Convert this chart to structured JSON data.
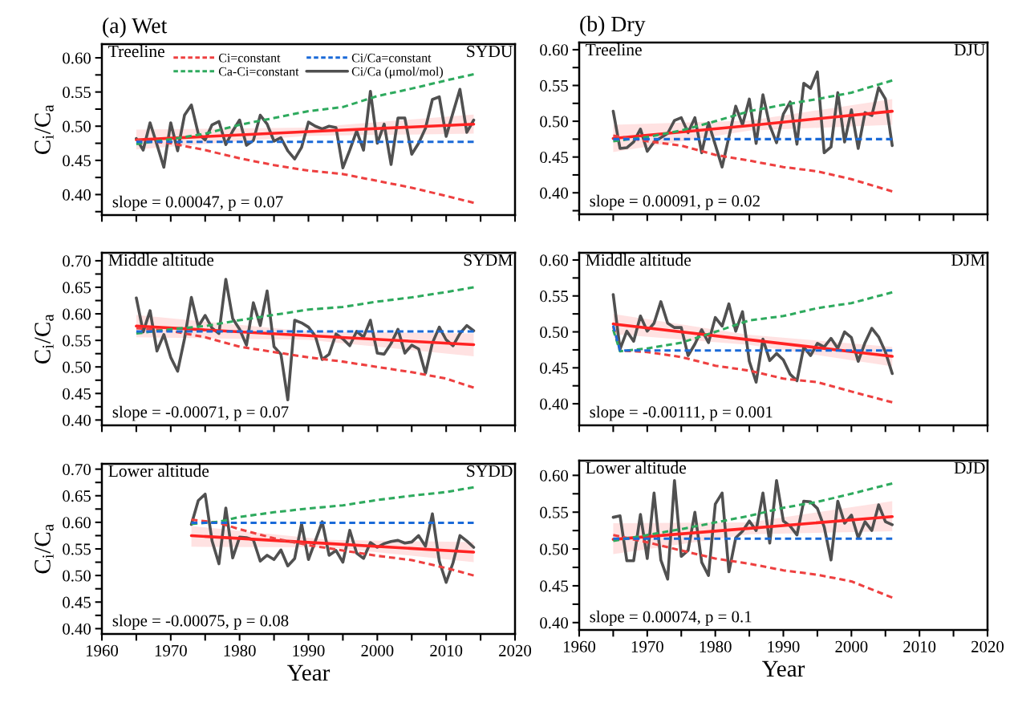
{
  "chart_data": [
    {
      "type": "line",
      "title": "(a) Wet",
      "ylabel": "C$_{i}$/C$_{a}$",
      "xlim": [
        1960,
        2020
      ],
      "ylim": [
        0.37,
        0.62
      ],
      "tick_labels": "y",
      "legend": "top",
      "xticks": [
        1960,
        {
          "value": 1965,
          "label": null
        },
        1970,
        {
          "value": 1975,
          "label": null
        },
        1980,
        {
          "value": 1985,
          "label": null
        },
        1990,
        {
          "value": 1995,
          "label": null
        },
        2000,
        {
          "value": 2005,
          "label": null
        },
        2010,
        {
          "value": 2015,
          "label": null
        },
        2020
      ],
      "yticks": [
        {
          "value": 0.375,
          "label": null
        },
        {
          "value": 0.4,
          "label": "0.40"
        },
        {
          "value": 0.425,
          "label": null
        },
        {
          "value": 0.45,
          "label": "0.45"
        },
        {
          "value": 0.475,
          "label": null
        },
        {
          "value": 0.5,
          "label": "0.50"
        },
        {
          "value": 0.525,
          "label": null
        },
        {
          "value": 0.55,
          "label": "0.55"
        },
        {
          "value": 0.575,
          "label": null
        },
        {
          "value": 0.6,
          "label": "0.60"
        }
      ],
      "annotations": [
        "Treeline",
        "SYDU",
        "slope = 0.00047, p = 0.07"
      ],
      "series": [
        {
          "name": "Ci=constant",
          "color": "#ee4040",
          "line_style": "dashed",
          "x": [
            1965,
            1970,
            1975,
            1980,
            1985,
            1990,
            1995,
            2000,
            2005,
            2010,
            2014
          ],
          "values": [
            0.48,
            0.475,
            0.465,
            0.453,
            0.443,
            0.435,
            0.43,
            0.42,
            0.41,
            0.398,
            0.388
          ]
        },
        {
          "name": "Ca-Ci=constant",
          "color": "#2eaa5e",
          "line_style": "dashed",
          "x": [
            1965,
            1970,
            1975,
            1980,
            1985,
            1990,
            1995,
            2000,
            2005,
            2010,
            2014
          ],
          "values": [
            0.474,
            0.481,
            0.489,
            0.502,
            0.512,
            0.522,
            0.528,
            0.544,
            0.555,
            0.567,
            0.576
          ]
        },
        {
          "name": "Ci/Ca=constant",
          "color": "#1a6ad8",
          "line_style": "dashed",
          "x": [
            1965,
            2014
          ],
          "values": [
            0.477,
            0.477
          ]
        },
        {
          "name": "Ci/Ca (μmol/mol)",
          "color": "#505050",
          "line_style": "solid",
          "x": [
            1965,
            1966,
            1967,
            1968,
            1969,
            1970,
            1971,
            1972,
            1973,
            1974,
            1975,
            1976,
            1977,
            1978,
            1979,
            1980,
            1981,
            1982,
            1983,
            1984,
            1985,
            1986,
            1987,
            1988,
            1989,
            1990,
            1991,
            1992,
            1993,
            1994,
            1995,
            1996,
            1997,
            1998,
            1999,
            2000,
            2001,
            2002,
            2003,
            2004,
            2005,
            2006,
            2007,
            2008,
            2009,
            2010,
            2011,
            2012,
            2013,
            2014
          ],
          "values": [
            0.482,
            0.465,
            0.505,
            0.473,
            0.44,
            0.505,
            0.464,
            0.516,
            0.531,
            0.489,
            0.48,
            0.502,
            0.507,
            0.473,
            0.493,
            0.509,
            0.472,
            0.479,
            0.516,
            0.503,
            0.478,
            0.483,
            0.464,
            0.452,
            0.469,
            0.506,
            0.5,
            0.496,
            0.5,
            0.498,
            0.439,
            0.465,
            0.493,
            0.465,
            0.551,
            0.475,
            0.503,
            0.444,
            0.512,
            0.512,
            0.459,
            0.475,
            0.497,
            0.539,
            0.543,
            0.485,
            0.52,
            0.554,
            0.491,
            0.509
          ]
        },
        {
          "color": "#ff2222",
          "line_style": "solid",
          "x": [
            1965,
            1990,
            2014
          ],
          "values": [
            0.48,
            0.492,
            0.503
          ],
          "lower": [
            0.466,
            0.486,
            0.489
          ],
          "upper": [
            0.495,
            0.498,
            0.517
          ]
        }
      ]
    },
    {
      "type": "line",
      "title": "(b) Dry",
      "xlim": [
        1960,
        2020
      ],
      "ylim": [
        0.37,
        0.61
      ],
      "tick_labels": "y",
      "xticks": [
        1960,
        {
          "value": 1965,
          "label": null
        },
        1970,
        {
          "value": 1975,
          "label": null
        },
        1980,
        {
          "value": 1985,
          "label": null
        },
        1990,
        {
          "value": 1995,
          "label": null
        },
        2000,
        {
          "value": 2005,
          "label": null
        },
        2010,
        {
          "value": 2015,
          "label": null
        },
        2020
      ],
      "yticks": [
        {
          "value": 0.375,
          "label": null
        },
        {
          "value": 0.4,
          "label": "0.40"
        },
        {
          "value": 0.425,
          "label": null
        },
        {
          "value": 0.45,
          "label": "0.45"
        },
        {
          "value": 0.475,
          "label": null
        },
        {
          "value": 0.5,
          "label": "0.50"
        },
        {
          "value": 0.525,
          "label": null
        },
        {
          "value": 0.55,
          "label": "0.55"
        },
        {
          "value": 0.575,
          "label": null
        },
        {
          "value": 0.6,
          "label": "0.60"
        }
      ],
      "annotations": [
        "Treeline",
        "DJU",
        "slope = 0.00091, p = 0.02"
      ],
      "series": [
        {
          "color": "#ee4040",
          "line_style": "dashed",
          "x": [
            1965,
            1970,
            1975,
            1980,
            1985,
            1990,
            1995,
            2000,
            2006
          ],
          "values": [
            0.48,
            0.472,
            0.466,
            0.453,
            0.445,
            0.436,
            0.43,
            0.419,
            0.402
          ]
        },
        {
          "color": "#2eaa5e",
          "line_style": "dashed",
          "x": [
            1965,
            1970,
            1975,
            1980,
            1985,
            1990,
            1995,
            2000,
            2006
          ],
          "values": [
            0.472,
            0.478,
            0.487,
            0.5,
            0.514,
            0.523,
            0.531,
            0.54,
            0.557
          ]
        },
        {
          "color": "#1a6ad8",
          "line_style": "dashed",
          "x": [
            1965,
            2006
          ],
          "values": [
            0.475,
            0.475
          ]
        },
        {
          "color": "#505050",
          "line_style": "solid",
          "x": [
            1965,
            1966,
            1967,
            1968,
            1969,
            1970,
            1971,
            1972,
            1973,
            1974,
            1975,
            1976,
            1977,
            1978,
            1979,
            1980,
            1981,
            1982,
            1983,
            1984,
            1985,
            1986,
            1987,
            1988,
            1989,
            1990,
            1991,
            1992,
            1993,
            1994,
            1995,
            1996,
            1997,
            1998,
            1999,
            2000,
            2001,
            2002,
            2003,
            2004,
            2005,
            2006
          ],
          "values": [
            0.514,
            0.462,
            0.463,
            0.471,
            0.489,
            0.458,
            0.471,
            0.477,
            0.483,
            0.501,
            0.505,
            0.484,
            0.505,
            0.456,
            0.498,
            0.467,
            0.436,
            0.478,
            0.521,
            0.495,
            0.531,
            0.469,
            0.537,
            0.494,
            0.47,
            0.51,
            0.527,
            0.468,
            0.553,
            0.546,
            0.569,
            0.456,
            0.464,
            0.54,
            0.471,
            0.516,
            0.462,
            0.512,
            0.508,
            0.547,
            0.531,
            0.466
          ]
        },
        {
          "color": "#ff2222",
          "line_style": "solid",
          "x": [
            1965,
            1985,
            2006
          ],
          "values": [
            0.476,
            0.494,
            0.514
          ],
          "lower": [
            0.457,
            0.487,
            0.495
          ],
          "upper": [
            0.495,
            0.501,
            0.531
          ]
        }
      ]
    },
    {
      "type": "line",
      "ylabel": "C$_{i}$/C$_{a}$",
      "xlim": [
        1960,
        2020
      ],
      "ylim": [
        0.39,
        0.715
      ],
      "tick_labels": "y",
      "xticks": [
        1960,
        {
          "value": 1965,
          "label": null
        },
        1970,
        {
          "value": 1975,
          "label": null
        },
        1980,
        {
          "value": 1985,
          "label": null
        },
        1990,
        {
          "value": 1995,
          "label": null
        },
        2000,
        {
          "value": 2005,
          "label": null
        },
        2010,
        {
          "value": 2015,
          "label": null
        },
        2020
      ],
      "yticks": [
        {
          "value": 0.4,
          "label": "0.40"
        },
        {
          "value": 0.425,
          "label": null
        },
        {
          "value": 0.45,
          "label": "0.45"
        },
        {
          "value": 0.475,
          "label": null
        },
        {
          "value": 0.5,
          "label": "0.50"
        },
        {
          "value": 0.525,
          "label": null
        },
        {
          "value": 0.55,
          "label": "0.55"
        },
        {
          "value": 0.575,
          "label": null
        },
        {
          "value": 0.6,
          "label": "0.60"
        },
        {
          "value": 0.625,
          "label": null
        },
        {
          "value": 0.65,
          "label": "0.65"
        },
        {
          "value": 0.675,
          "label": null
        },
        {
          "value": 0.7,
          "label": "0.70"
        }
      ],
      "annotations": [
        "Middle altitude",
        "SYDM",
        "slope = -0.00071, p = 0.07"
      ],
      "series": [
        {
          "color": "#ee4040",
          "line_style": "dashed",
          "x": [
            1965,
            1970,
            1975,
            1980,
            1985,
            1990,
            1995,
            2000,
            2005,
            2010,
            2014
          ],
          "values": [
            0.573,
            0.568,
            0.556,
            0.538,
            0.528,
            0.518,
            0.51,
            0.5,
            0.49,
            0.478,
            0.461
          ]
        },
        {
          "color": "#2eaa5e",
          "line_style": "dashed",
          "x": [
            1965,
            1970,
            1975,
            1980,
            1985,
            1990,
            1995,
            2000,
            2005,
            2010,
            2014
          ],
          "values": [
            0.563,
            0.571,
            0.577,
            0.588,
            0.598,
            0.608,
            0.613,
            0.623,
            0.631,
            0.641,
            0.65
          ]
        },
        {
          "color": "#1a6ad8",
          "line_style": "dashed",
          "x": [
            1965,
            2014
          ],
          "values": [
            0.567,
            0.567
          ]
        },
        {
          "color": "#505050",
          "line_style": "solid",
          "x": [
            1965,
            1966,
            1967,
            1968,
            1969,
            1970,
            1971,
            1972,
            1973,
            1974,
            1975,
            1976,
            1977,
            1978,
            1979,
            1980,
            1981,
            1982,
            1983,
            1984,
            1985,
            1986,
            1987,
            1988,
            1989,
            1990,
            1991,
            1992,
            1993,
            1994,
            1995,
            1996,
            1997,
            1998,
            1999,
            2000,
            2001,
            2002,
            2003,
            2004,
            2005,
            2006,
            2007,
            2008,
            2009,
            2010,
            2011,
            2012,
            2013,
            2014
          ],
          "values": [
            0.63,
            0.566,
            0.606,
            0.53,
            0.561,
            0.518,
            0.492,
            0.553,
            0.631,
            0.576,
            0.597,
            0.573,
            0.563,
            0.665,
            0.591,
            0.571,
            0.541,
            0.621,
            0.578,
            0.643,
            0.538,
            0.524,
            0.438,
            0.588,
            0.583,
            0.575,
            0.558,
            0.514,
            0.524,
            0.562,
            0.553,
            0.54,
            0.567,
            0.556,
            0.588,
            0.526,
            0.524,
            0.544,
            0.571,
            0.526,
            0.541,
            0.534,
            0.488,
            0.545,
            0.575,
            0.551,
            0.54,
            0.563,
            0.578,
            0.568
          ]
        },
        {
          "color": "#ff2222",
          "line_style": "solid",
          "x": [
            1965,
            1990,
            2014
          ],
          "values": [
            0.577,
            0.559,
            0.542
          ],
          "lower": [
            0.556,
            0.551,
            0.52
          ],
          "upper": [
            0.598,
            0.567,
            0.563
          ]
        }
      ]
    },
    {
      "type": "line",
      "xlim": [
        1960,
        2020
      ],
      "ylim": [
        0.37,
        0.61
      ],
      "tick_labels": "y",
      "xticks": [
        1960,
        {
          "value": 1965,
          "label": null
        },
        1970,
        {
          "value": 1975,
          "label": null
        },
        1980,
        {
          "value": 1985,
          "label": null
        },
        1990,
        {
          "value": 1995,
          "label": null
        },
        2000,
        {
          "value": 2005,
          "label": null
        },
        2010,
        {
          "value": 2015,
          "label": null
        },
        2020
      ],
      "yticks": [
        {
          "value": 0.4,
          "label": "0.40"
        },
        {
          "value": 0.425,
          "label": null
        },
        {
          "value": 0.45,
          "label": "0.45"
        },
        {
          "value": 0.475,
          "label": null
        },
        {
          "value": 0.5,
          "label": "0.50"
        },
        {
          "value": 0.525,
          "label": null
        },
        {
          "value": 0.55,
          "label": "0.55"
        },
        {
          "value": 0.575,
          "label": null
        },
        {
          "value": 0.6,
          "label": "0.60"
        }
      ],
      "annotations": [
        "Middle altitude",
        "DJM",
        "slope = -0.00111, p = 0.001"
      ],
      "series": [
        {
          "color": "#ee4040",
          "line_style": "dashed",
          "x": [
            1965,
            1966,
            1970,
            1975,
            1980,
            1985,
            1990,
            1995,
            2000,
            2006
          ],
          "values": [
            0.507,
            0.474,
            0.472,
            0.465,
            0.453,
            0.446,
            0.435,
            0.43,
            0.417,
            0.402
          ]
        },
        {
          "color": "#2eaa5e",
          "line_style": "dashed",
          "x": [
            1965,
            1966,
            1970,
            1975,
            1980,
            1985,
            1990,
            1995,
            2000,
            2006
          ],
          "values": [
            0.503,
            0.473,
            0.477,
            0.485,
            0.5,
            0.516,
            0.522,
            0.533,
            0.54,
            0.555
          ]
        },
        {
          "color": "#1a6ad8",
          "line_style": "dashed",
          "x": [
            1965,
            1966,
            2006
          ],
          "values": [
            0.509,
            0.474,
            0.474
          ]
        },
        {
          "color": "#505050",
          "line_style": "solid",
          "x": [
            1965,
            1966,
            1967,
            1968,
            1969,
            1970,
            1971,
            1972,
            1973,
            1974,
            1975,
            1976,
            1977,
            1978,
            1979,
            1980,
            1981,
            1982,
            1983,
            1984,
            1985,
            1986,
            1987,
            1988,
            1989,
            1990,
            1991,
            1992,
            1993,
            1994,
            1995,
            1996,
            1997,
            1998,
            1999,
            2000,
            2001,
            2002,
            2003,
            2004,
            2005,
            2006
          ],
          "values": [
            0.552,
            0.476,
            0.501,
            0.487,
            0.522,
            0.501,
            0.512,
            0.542,
            0.512,
            0.506,
            0.506,
            0.467,
            0.483,
            0.503,
            0.485,
            0.52,
            0.508,
            0.539,
            0.501,
            0.528,
            0.459,
            0.43,
            0.49,
            0.46,
            0.47,
            0.461,
            0.441,
            0.432,
            0.479,
            0.467,
            0.484,
            0.479,
            0.491,
            0.477,
            0.5,
            0.492,
            0.459,
            0.485,
            0.505,
            0.493,
            0.472,
            0.442
          ]
        },
        {
          "color": "#ff2222",
          "line_style": "solid",
          "x": [
            1965,
            1985,
            2006
          ],
          "values": [
            0.511,
            0.489,
            0.466
          ],
          "lower": [
            0.497,
            0.482,
            0.452
          ],
          "upper": [
            0.525,
            0.496,
            0.479
          ]
        }
      ]
    },
    {
      "type": "line",
      "ylabel": "C$_{i}$/C$_{a}$",
      "xlabel": "Year",
      "xlim": [
        1960,
        2020
      ],
      "ylim": [
        0.39,
        0.71
      ],
      "xticks": [
        1960,
        {
          "value": 1965,
          "label": null
        },
        1970,
        {
          "value": 1975,
          "label": null
        },
        1980,
        {
          "value": 1985,
          "label": null
        },
        1990,
        {
          "value": 1995,
          "label": null
        },
        2000,
        {
          "value": 2005,
          "label": null
        },
        2010,
        {
          "value": 2015,
          "label": null
        },
        2020
      ],
      "yticks": [
        {
          "value": 0.4,
          "label": "0.40"
        },
        {
          "value": 0.425,
          "label": null
        },
        {
          "value": 0.45,
          "label": "0.45"
        },
        {
          "value": 0.475,
          "label": null
        },
        {
          "value": 0.5,
          "label": "0.50"
        },
        {
          "value": 0.525,
          "label": null
        },
        {
          "value": 0.55,
          "label": "0.55"
        },
        {
          "value": 0.575,
          "label": null
        },
        {
          "value": 0.6,
          "label": "0.60"
        },
        {
          "value": 0.625,
          "label": null
        },
        {
          "value": 0.65,
          "label": "0.65"
        },
        {
          "value": 0.675,
          "label": null
        },
        {
          "value": 0.7,
          "label": "0.70"
        }
      ],
      "annotations": [
        "Lower altitude",
        "SYDD",
        "slope = -0.00075, p = 0.08"
      ],
      "series": [
        {
          "color": "#ee4040",
          "line_style": "dashed",
          "x": [
            1973,
            1977,
            1980,
            1985,
            1990,
            1995,
            2000,
            2005,
            2010,
            2014
          ],
          "values": [
            0.605,
            0.599,
            0.587,
            0.57,
            0.557,
            0.547,
            0.537,
            0.529,
            0.514,
            0.5
          ]
        },
        {
          "color": "#2eaa5e",
          "line_style": "dashed",
          "x": [
            1973,
            1977,
            1980,
            1985,
            1990,
            1995,
            2000,
            2005,
            2010,
            2014
          ],
          "values": [
            0.597,
            0.601,
            0.61,
            0.619,
            0.626,
            0.632,
            0.642,
            0.65,
            0.657,
            0.666
          ]
        },
        {
          "color": "#1a6ad8",
          "line_style": "dashed",
          "x": [
            1973,
            2014
          ],
          "values": [
            0.599,
            0.599
          ]
        },
        {
          "color": "#505050",
          "line_style": "solid",
          "x": [
            1973,
            1974,
            1975,
            1976,
            1977,
            1978,
            1979,
            1980,
            1981,
            1982,
            1983,
            1984,
            1985,
            1986,
            1987,
            1988,
            1989,
            1990,
            1991,
            1992,
            1993,
            1994,
            1995,
            1996,
            1997,
            1998,
            1999,
            2000,
            2001,
            2002,
            2003,
            2004,
            2005,
            2006,
            2007,
            2008,
            2009,
            2010,
            2011,
            2012,
            2013,
            2014
          ],
          "values": [
            0.596,
            0.641,
            0.653,
            0.565,
            0.522,
            0.627,
            0.533,
            0.572,
            0.571,
            0.567,
            0.527,
            0.538,
            0.53,
            0.548,
            0.518,
            0.532,
            0.597,
            0.53,
            0.565,
            0.601,
            0.538,
            0.547,
            0.525,
            0.585,
            0.542,
            0.532,
            0.562,
            0.553,
            0.56,
            0.564,
            0.566,
            0.561,
            0.563,
            0.575,
            0.555,
            0.616,
            0.527,
            0.487,
            0.524,
            0.575,
            0.565,
            0.553
          ]
        },
        {
          "color": "#ff2222",
          "line_style": "solid",
          "x": [
            1973,
            1993,
            2014
          ],
          "values": [
            0.575,
            0.56,
            0.544
          ],
          "lower": [
            0.554,
            0.553,
            0.525
          ],
          "upper": [
            0.593,
            0.567,
            0.563
          ]
        }
      ]
    },
    {
      "type": "line",
      "xlabel": "Year",
      "xlim": [
        1960,
        2020
      ],
      "ylim": [
        0.39,
        0.62
      ],
      "xticks": [
        1960,
        {
          "value": 1965,
          "label": null
        },
        1970,
        {
          "value": 1975,
          "label": null
        },
        1980,
        {
          "value": 1985,
          "label": null
        },
        1990,
        {
          "value": 1995,
          "label": null
        },
        2000,
        {
          "value": 2005,
          "label": null
        },
        2010,
        {
          "value": 2015,
          "label": null
        },
        2020
      ],
      "yticks": [
        {
          "value": 0.4,
          "label": "0.40"
        },
        {
          "value": 0.425,
          "label": null
        },
        {
          "value": 0.45,
          "label": "0.45"
        },
        {
          "value": 0.475,
          "label": null
        },
        {
          "value": 0.5,
          "label": "0.50"
        },
        {
          "value": 0.525,
          "label": null
        },
        {
          "value": 0.55,
          "label": "0.55"
        },
        {
          "value": 0.575,
          "label": null
        },
        {
          "value": 0.6,
          "label": "0.60"
        }
      ],
      "annotations": [
        "Lower altitude",
        "DJD",
        "slope = 0.00074, p = 0.1"
      ],
      "series": [
        {
          "color": "#ee4040",
          "line_style": "dashed",
          "x": [
            1965,
            1970,
            1975,
            1980,
            1985,
            1990,
            1995,
            2000,
            2006
          ],
          "values": [
            0.519,
            0.509,
            0.498,
            0.487,
            0.48,
            0.471,
            0.465,
            0.456,
            0.434
          ]
        },
        {
          "color": "#2eaa5e",
          "line_style": "dashed",
          "x": [
            1965,
            1970,
            1975,
            1980,
            1985,
            1990,
            1995,
            2000,
            2006
          ],
          "values": [
            0.511,
            0.519,
            0.527,
            0.536,
            0.545,
            0.556,
            0.564,
            0.575,
            0.589
          ]
        },
        {
          "color": "#1a6ad8",
          "line_style": "dashed",
          "x": [
            1965,
            2006
          ],
          "values": [
            0.514,
            0.514
          ]
        },
        {
          "color": "#505050",
          "line_style": "solid",
          "x": [
            1965,
            1966,
            1967,
            1968,
            1969,
            1970,
            1971,
            1972,
            1973,
            1974,
            1975,
            1976,
            1977,
            1978,
            1979,
            1980,
            1981,
            1982,
            1983,
            1984,
            1985,
            1986,
            1987,
            1988,
            1989,
            1990,
            1991,
            1992,
            1993,
            1994,
            1995,
            1996,
            1997,
            1998,
            1999,
            2000,
            2001,
            2002,
            2003,
            2004,
            2005,
            2006
          ],
          "values": [
            0.543,
            0.545,
            0.484,
            0.484,
            0.547,
            0.487,
            0.576,
            0.485,
            0.459,
            0.593,
            0.49,
            0.498,
            0.55,
            0.482,
            0.464,
            0.561,
            0.576,
            0.469,
            0.515,
            0.524,
            0.538,
            0.525,
            0.576,
            0.508,
            0.593,
            0.538,
            0.531,
            0.519,
            0.565,
            0.564,
            0.555,
            0.53,
            0.485,
            0.565,
            0.535,
            0.546,
            0.515,
            0.537,
            0.525,
            0.56,
            0.537,
            0.533
          ]
        },
        {
          "color": "#ff2222",
          "line_style": "solid",
          "x": [
            1965,
            1985,
            2006
          ],
          "values": [
            0.513,
            0.528,
            0.544
          ],
          "lower": [
            0.493,
            0.52,
            0.524
          ],
          "upper": [
            0.535,
            0.536,
            0.565
          ]
        }
      ]
    }
  ]
}
